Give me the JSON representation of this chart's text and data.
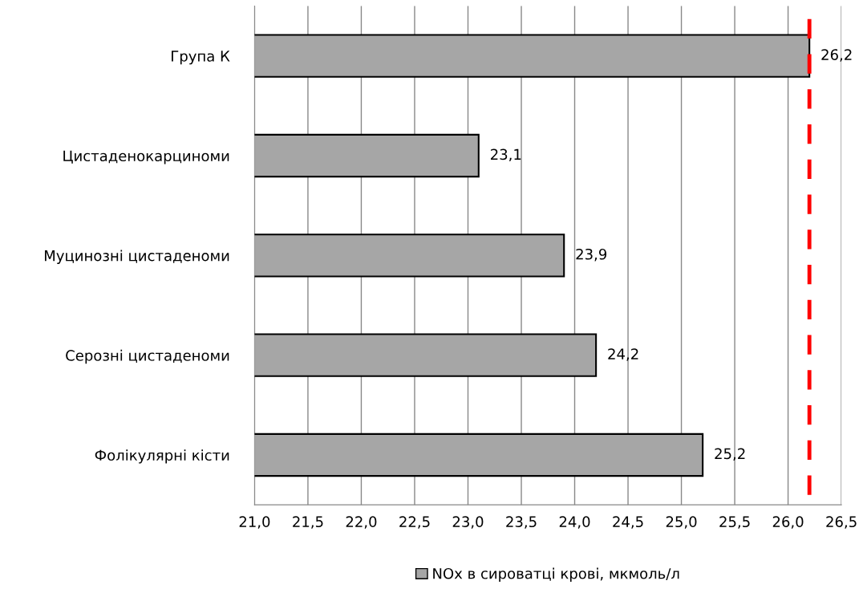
{
  "chart_data": {
    "type": "bar",
    "orientation": "horizontal",
    "categories": [
      "Група К",
      "Цистаденокарциноми",
      "Муцинозні цистаденоми",
      "Серозні цистаденоми",
      "Фолікулярні кісти"
    ],
    "series": [
      {
        "name": "NOx в сироватці крові, мкмоль/л",
        "color": "#a6a6a6",
        "values": [
          26.2,
          23.1,
          23.9,
          24.2,
          25.2
        ]
      }
    ],
    "value_labels": [
      "26,2",
      "23,1",
      "23,9",
      "24,2",
      "25,2"
    ],
    "xlim": [
      21,
      26.5
    ],
    "xticks": [
      {
        "value": 21,
        "label": "21,0"
      },
      {
        "value": 21.5,
        "label": "21,5"
      },
      {
        "value": 22,
        "label": "22,0"
      },
      {
        "value": 22.5,
        "label": "22,5"
      },
      {
        "value": 23,
        "label": "23,0"
      },
      {
        "value": 23.5,
        "label": "23,5"
      },
      {
        "value": 24,
        "label": "24,0"
      },
      {
        "value": 24.5,
        "label": "24,5"
      },
      {
        "value": 25,
        "label": "25,0"
      },
      {
        "value": 25.5,
        "label": "25,5"
      },
      {
        "value": 26,
        "label": "26,0"
      },
      {
        "value": 26.5,
        "label": "26,5"
      }
    ],
    "ref_lines": [
      {
        "axis": "x",
        "value": 26.2,
        "color": "#ff0000",
        "line_style": "dashed"
      }
    ],
    "grid": "x",
    "legend": "bottom"
  }
}
